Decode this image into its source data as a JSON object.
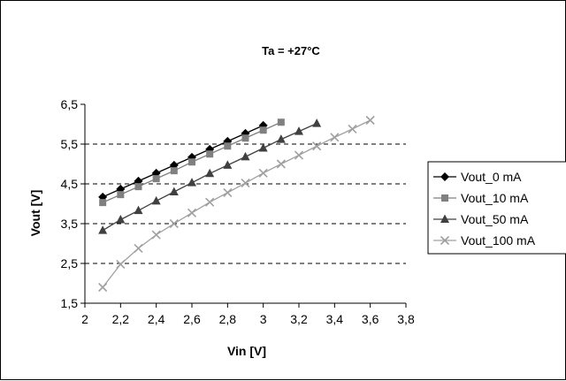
{
  "chart_data": {
    "type": "line",
    "title": "Ta = +27°C",
    "xlabel": "Vin [V]",
    "ylabel": "Vout [V]",
    "xlim": [
      2,
      3.8
    ],
    "ylim": [
      1.5,
      6.5
    ],
    "x_ticks": [
      "2",
      "2,2",
      "2,4",
      "2,6",
      "2,8",
      "3",
      "3,2",
      "3,4",
      "3,6",
      "3,8"
    ],
    "y_ticks": [
      "1,5",
      "2,5",
      "3,5",
      "4,5",
      "5,5",
      "6,5"
    ],
    "grid": "horizontal-dashed",
    "legend_position": "right",
    "series": [
      {
        "name": "Vout_0 mA",
        "marker": "diamond",
        "color": "#000000",
        "x": [
          2.1,
          2.2,
          2.3,
          2.4,
          2.5,
          2.6,
          2.7,
          2.8,
          2.9,
          3.0
        ],
        "y": [
          4.17,
          4.37,
          4.57,
          4.77,
          4.97,
          5.17,
          5.37,
          5.57,
          5.77,
          5.97
        ]
      },
      {
        "name": "Vout_10 mA",
        "marker": "square",
        "color": "#808080",
        "x": [
          2.1,
          2.2,
          2.3,
          2.4,
          2.5,
          2.6,
          2.7,
          2.8,
          2.9,
          3.0,
          3.1
        ],
        "y": [
          4.03,
          4.23,
          4.43,
          4.63,
          4.83,
          5.05,
          5.25,
          5.45,
          5.65,
          5.85,
          6.05
        ]
      },
      {
        "name": "Vout_50 mA",
        "marker": "triangle",
        "color": "#404040",
        "x": [
          2.1,
          2.2,
          2.3,
          2.4,
          2.5,
          2.6,
          2.7,
          2.8,
          2.9,
          3.0,
          3.1,
          3.2,
          3.3
        ],
        "y": [
          3.33,
          3.6,
          3.83,
          4.07,
          4.3,
          4.53,
          4.76,
          4.97,
          5.18,
          5.4,
          5.62,
          5.82,
          6.02
        ]
      },
      {
        "name": "Vout_100 mA",
        "marker": "x",
        "color": "#a0a0a0",
        "x": [
          2.1,
          2.2,
          2.3,
          2.4,
          2.5,
          2.6,
          2.7,
          2.8,
          2.9,
          3.0,
          3.1,
          3.2,
          3.3,
          3.4,
          3.5,
          3.6
        ],
        "y": [
          1.9,
          2.48,
          2.88,
          3.22,
          3.5,
          3.77,
          4.04,
          4.28,
          4.52,
          4.77,
          5.0,
          5.22,
          5.45,
          5.67,
          5.88,
          6.1
        ]
      }
    ]
  }
}
